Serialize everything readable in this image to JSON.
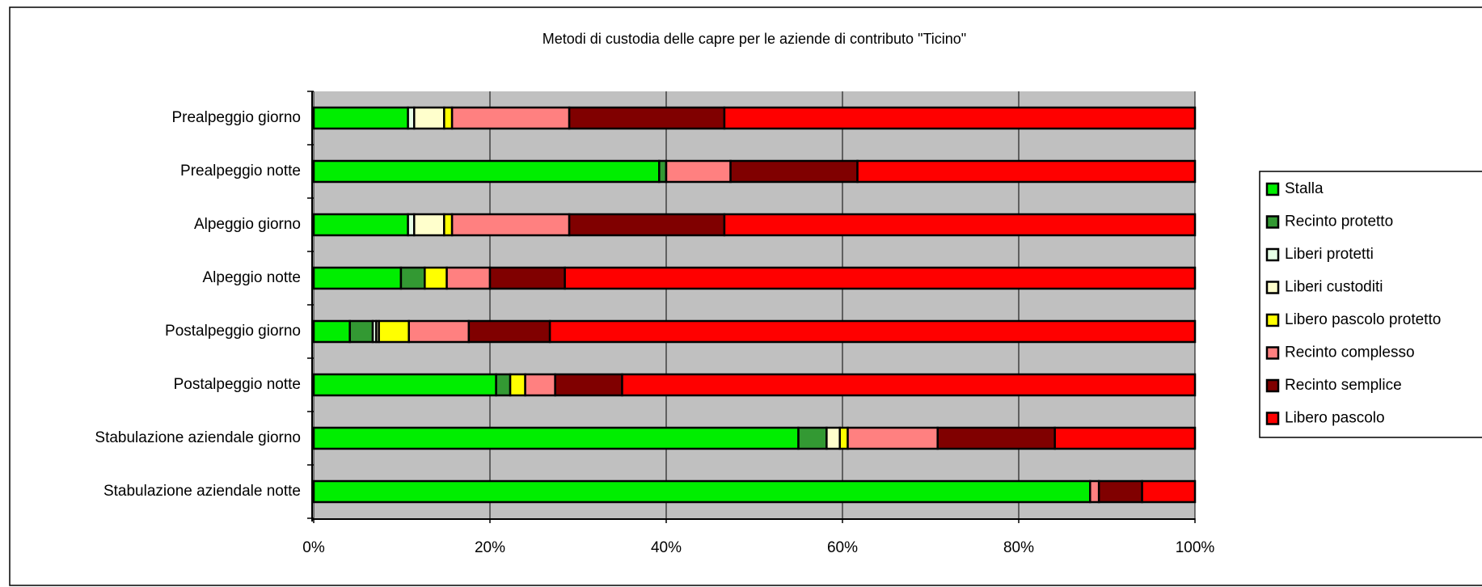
{
  "chart_data": {
    "type": "stacked-bar-horizontal",
    "title": "Metodi di custodia delle capre per le aziende di contributo \"Ticino\"",
    "categories": [
      "Prealpeggio giorno",
      "Prealpeggio notte",
      "Alpeggio giorno",
      "Alpeggio notte",
      "Postalpeggio giorno",
      "Postalpeggio notte",
      "Stabulazione aziendale giorno",
      "Stabulazione aziendale notte"
    ],
    "series": [
      {
        "name": "Stalla",
        "color": "#00ee00",
        "values": [
          10.7,
          39.2,
          10.7,
          9.9,
          4.1,
          20.7,
          55.0,
          88.1
        ]
      },
      {
        "name": "Recinto protetto",
        "color": "#339933",
        "values": [
          0,
          0.8,
          0,
          2.7,
          2.6,
          1.6,
          3.2,
          0
        ]
      },
      {
        "name": "Liberi protetti",
        "color": "#e6ffe6",
        "values": [
          0.7,
          0,
          0.7,
          0,
          0.4,
          0,
          0,
          0
        ]
      },
      {
        "name": "Liberi custoditi",
        "color": "#ffffcc",
        "values": [
          3.4,
          0,
          3.4,
          0,
          0.3,
          0,
          1.5,
          0
        ]
      },
      {
        "name": "Libero pascolo protetto",
        "color": "#ffff00",
        "values": [
          0.9,
          0,
          0.9,
          2.5,
          3.4,
          1.7,
          0.9,
          0
        ]
      },
      {
        "name": "Recinto complesso",
        "color": "#ff8080",
        "values": [
          13.3,
          7.3,
          13.3,
          4.9,
          6.8,
          3.4,
          10.2,
          1.0
        ]
      },
      {
        "name": "Recinto semplice",
        "color": "#800000",
        "values": [
          17.6,
          14.4,
          17.6,
          8.5,
          9.2,
          7.6,
          13.3,
          4.9
        ]
      },
      {
        "name": "Libero pascolo",
        "color": "#ff0000",
        "values": [
          53.4,
          38.3,
          53.4,
          71.5,
          73.2,
          65.0,
          15.9,
          6.0
        ]
      }
    ],
    "xlim": [
      0,
      100
    ],
    "xticks": [
      {
        "value": 0,
        "label": "0%"
      },
      {
        "value": 20,
        "label": "20%"
      },
      {
        "value": 40,
        "label": "40%"
      },
      {
        "value": 60,
        "label": "60%"
      },
      {
        "value": 80,
        "label": "80%"
      },
      {
        "value": 100,
        "label": "100%"
      }
    ],
    "grid": true,
    "legend": "right"
  }
}
